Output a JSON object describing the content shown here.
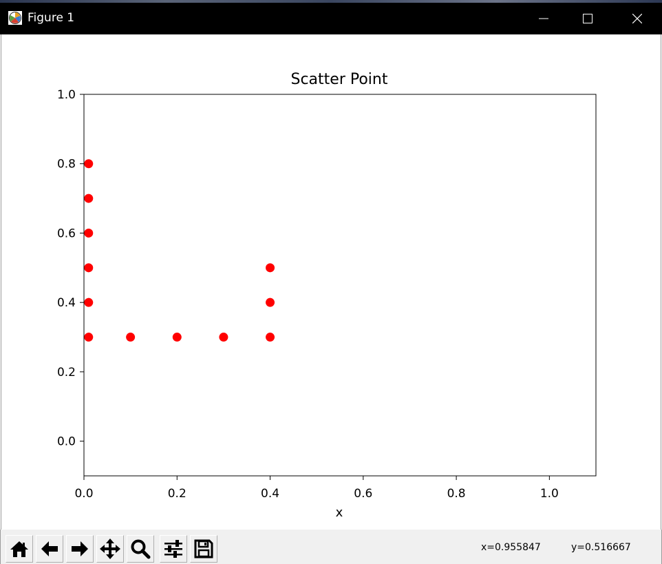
{
  "window": {
    "title": "Figure 1",
    "icons": [
      "matplotlib-logo-icon",
      "minimize-icon",
      "maximize-icon",
      "close-icon"
    ]
  },
  "toolbar": {
    "buttons": [
      {
        "name": "home-button",
        "icon": "home-icon"
      },
      {
        "name": "back-button",
        "icon": "arrow-left-icon"
      },
      {
        "name": "forward-button",
        "icon": "arrow-right-icon"
      },
      {
        "name": "pan-button",
        "icon": "move-icon"
      },
      {
        "name": "zoom-button",
        "icon": "magnifier-icon"
      },
      {
        "name": "configure-subplots-button",
        "icon": "sliders-icon"
      },
      {
        "name": "save-button",
        "icon": "floppy-disk-icon"
      }
    ],
    "cursor_x": "x=0.955847",
    "cursor_y": "y=0.516667"
  },
  "chart_data": {
    "type": "scatter",
    "title": "Scatter Point",
    "xlabel": "x",
    "ylabel": "",
    "xlim": [
      0.0,
      1.1
    ],
    "ylim": [
      -0.1,
      1.0
    ],
    "xticks": [
      "0.0",
      "0.2",
      "0.4",
      "0.6",
      "0.8",
      "1.0"
    ],
    "yticks": [
      "0.0",
      "0.2",
      "0.4",
      "0.6",
      "0.8",
      "1.0"
    ],
    "grid": false,
    "marker_color": "#ff0000",
    "points": [
      {
        "x": 0.01,
        "y": 0.8
      },
      {
        "x": 0.01,
        "y": 0.7
      },
      {
        "x": 0.01,
        "y": 0.6
      },
      {
        "x": 0.01,
        "y": 0.5
      },
      {
        "x": 0.01,
        "y": 0.4
      },
      {
        "x": 0.01,
        "y": 0.3
      },
      {
        "x": 0.1,
        "y": 0.3
      },
      {
        "x": 0.2,
        "y": 0.3
      },
      {
        "x": 0.3,
        "y": 0.3
      },
      {
        "x": 0.4,
        "y": 0.3
      },
      {
        "x": 0.4,
        "y": 0.4
      },
      {
        "x": 0.4,
        "y": 0.5
      }
    ]
  }
}
